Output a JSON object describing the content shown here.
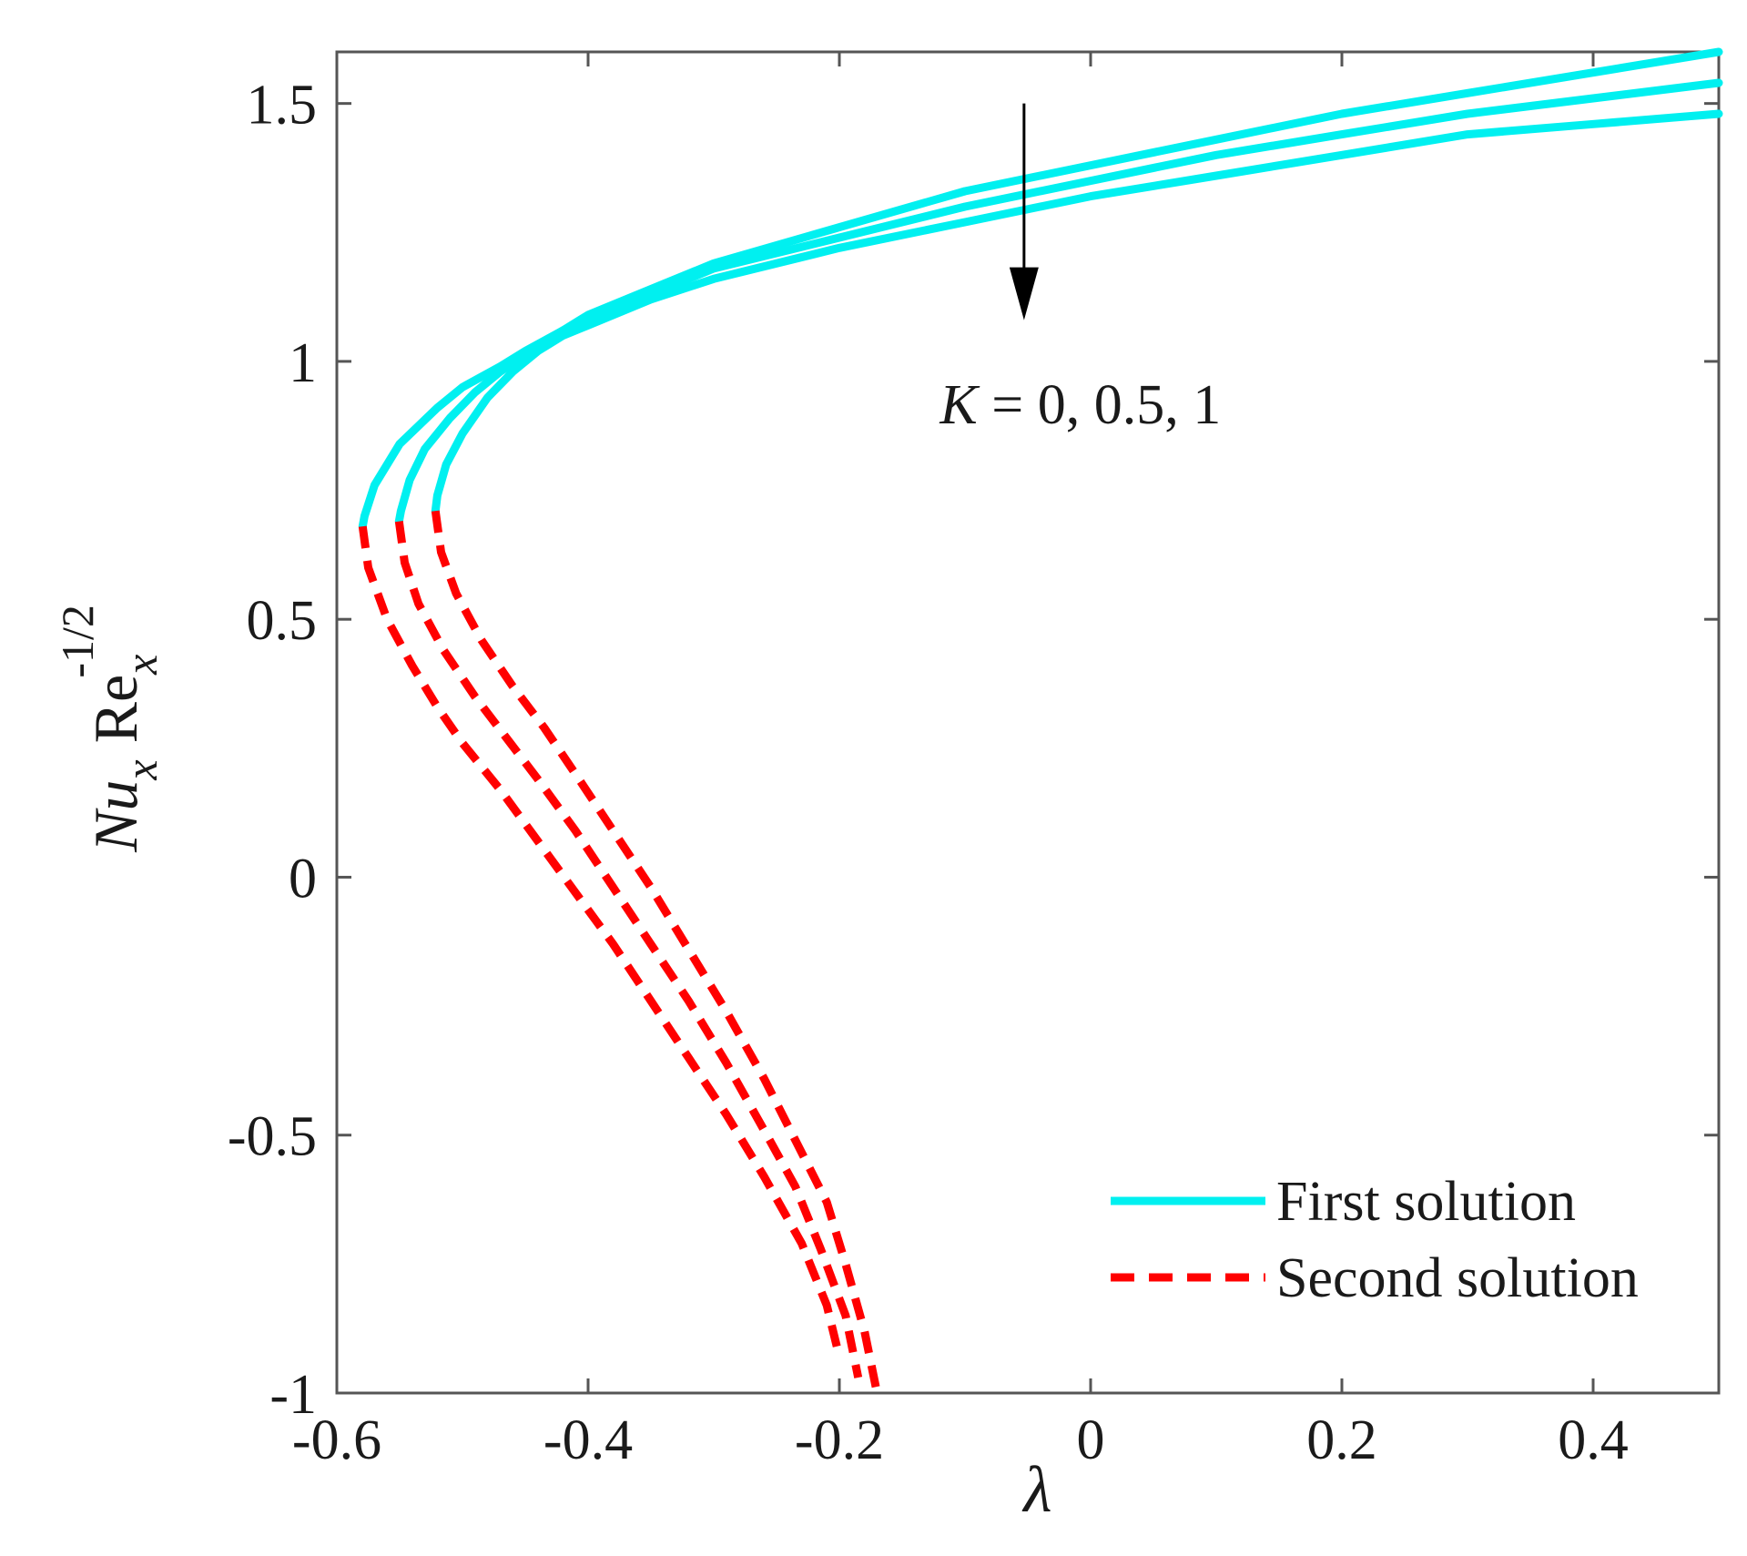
{
  "chart_data": {
    "type": "line",
    "title": "",
    "xlabel": "λ",
    "ylabel": {
      "main_1": "Nu",
      "sub_1": "x",
      "main_2": "Re",
      "sub_2": "x",
      "sup": "-1/2"
    },
    "xlim": [
      -0.6,
      0.5
    ],
    "ylim": [
      -1,
      1.6
    ],
    "xticks": [
      -0.6,
      -0.4,
      -0.2,
      0,
      0.2,
      0.4
    ],
    "xtick_labels": [
      "-0.6",
      "-0.4",
      "-0.2",
      "0",
      "0.2",
      "0.4"
    ],
    "yticks": [
      -1,
      -0.5,
      0,
      0.5,
      1,
      1.5
    ],
    "ytick_labels": [
      "-1",
      "-0.5",
      "0",
      "0.5",
      "1",
      "1.5"
    ],
    "grid": false,
    "legend": {
      "position": "bottom-right",
      "entries": [
        {
          "label": "First solution",
          "style": "solid",
          "color": "#00f0f0"
        },
        {
          "label": "Second solution",
          "style": "dashed",
          "color": "#ff0000"
        }
      ]
    },
    "annotation": {
      "arrow": {
        "x": -0.053,
        "y_from": 1.5,
        "y_to": 1.08
      },
      "text_var": "K",
      "text_rest": " = 0, 0.5, 1",
      "x": -0.12,
      "y": 0.88
    },
    "series": [
      {
        "name": "First solution, K = 0",
        "style": "solid",
        "color": "#00f0f0",
        "x": [
          -0.5795,
          -0.578,
          -0.57,
          -0.55,
          -0.52,
          -0.5,
          -0.47,
          -0.45,
          -0.42,
          -0.4,
          -0.35,
          -0.3,
          -0.2,
          -0.1,
          0,
          0.1,
          0.2,
          0.3,
          0.4,
          0.5
        ],
        "y": [
          0.68,
          0.7,
          0.76,
          0.84,
          0.91,
          0.95,
          0.99,
          1.02,
          1.06,
          1.09,
          1.14,
          1.19,
          1.26,
          1.33,
          1.38,
          1.43,
          1.48,
          1.52,
          1.56,
          1.6
        ]
      },
      {
        "name": "First solution, K = 0.5",
        "style": "solid",
        "color": "#00f0f0",
        "x": [
          -0.5505,
          -0.549,
          -0.542,
          -0.53,
          -0.51,
          -0.49,
          -0.47,
          -0.44,
          -0.42,
          -0.4,
          -0.35,
          -0.3,
          -0.2,
          -0.1,
          0,
          0.1,
          0.2,
          0.3,
          0.4,
          0.5
        ],
        "y": [
          0.69,
          0.71,
          0.77,
          0.83,
          0.89,
          0.94,
          0.98,
          1.03,
          1.06,
          1.08,
          1.13,
          1.18,
          1.24,
          1.3,
          1.35,
          1.4,
          1.44,
          1.48,
          1.51,
          1.54
        ]
      },
      {
        "name": "First solution, K = 1",
        "style": "solid",
        "color": "#00f0f0",
        "x": [
          -0.5215,
          -0.52,
          -0.513,
          -0.5,
          -0.48,
          -0.46,
          -0.44,
          -0.42,
          -0.4,
          -0.35,
          -0.3,
          -0.2,
          -0.1,
          0,
          0.1,
          0.2,
          0.3,
          0.4,
          0.5
        ],
        "y": [
          0.71,
          0.74,
          0.8,
          0.86,
          0.93,
          0.98,
          1.02,
          1.05,
          1.07,
          1.12,
          1.16,
          1.22,
          1.27,
          1.32,
          1.36,
          1.4,
          1.44,
          1.46,
          1.48
        ]
      },
      {
        "name": "Second solution, K = 0",
        "style": "dashed",
        "color": "#ff0000",
        "x": [
          -0.5795,
          -0.575,
          -0.56,
          -0.54,
          -0.52,
          -0.5,
          -0.47,
          -0.44,
          -0.41,
          -0.38,
          -0.35,
          -0.32,
          -0.29,
          -0.26,
          -0.23,
          -0.21,
          -0.2
        ],
        "y": [
          0.68,
          0.6,
          0.5,
          0.41,
          0.33,
          0.26,
          0.17,
          0.07,
          -0.03,
          -0.13,
          -0.24,
          -0.35,
          -0.46,
          -0.58,
          -0.71,
          -0.83,
          -0.93
        ]
      },
      {
        "name": "Second solution, K = 0.5",
        "style": "dashed",
        "color": "#ff0000",
        "x": [
          -0.5505,
          -0.546,
          -0.535,
          -0.515,
          -0.49,
          -0.465,
          -0.44,
          -0.41,
          -0.38,
          -0.35,
          -0.32,
          -0.29,
          -0.26,
          -0.235,
          -0.215,
          -0.195,
          -0.185
        ],
        "y": [
          0.69,
          0.61,
          0.53,
          0.44,
          0.35,
          0.27,
          0.19,
          0.09,
          -0.02,
          -0.13,
          -0.24,
          -0.36,
          -0.49,
          -0.6,
          -0.72,
          -0.85,
          -0.97
        ]
      },
      {
        "name": "Second solution, K = 1",
        "style": "dashed",
        "color": "#ff0000",
        "x": [
          -0.5215,
          -0.517,
          -0.505,
          -0.485,
          -0.46,
          -0.435,
          -0.41,
          -0.38,
          -0.35,
          -0.32,
          -0.29,
          -0.26,
          -0.235,
          -0.21,
          -0.195,
          -0.18,
          -0.17
        ],
        "y": [
          0.71,
          0.63,
          0.55,
          0.46,
          0.37,
          0.29,
          0.2,
          0.09,
          -0.02,
          -0.14,
          -0.26,
          -0.39,
          -0.51,
          -0.63,
          -0.75,
          -0.88,
          -1.0
        ]
      }
    ]
  }
}
